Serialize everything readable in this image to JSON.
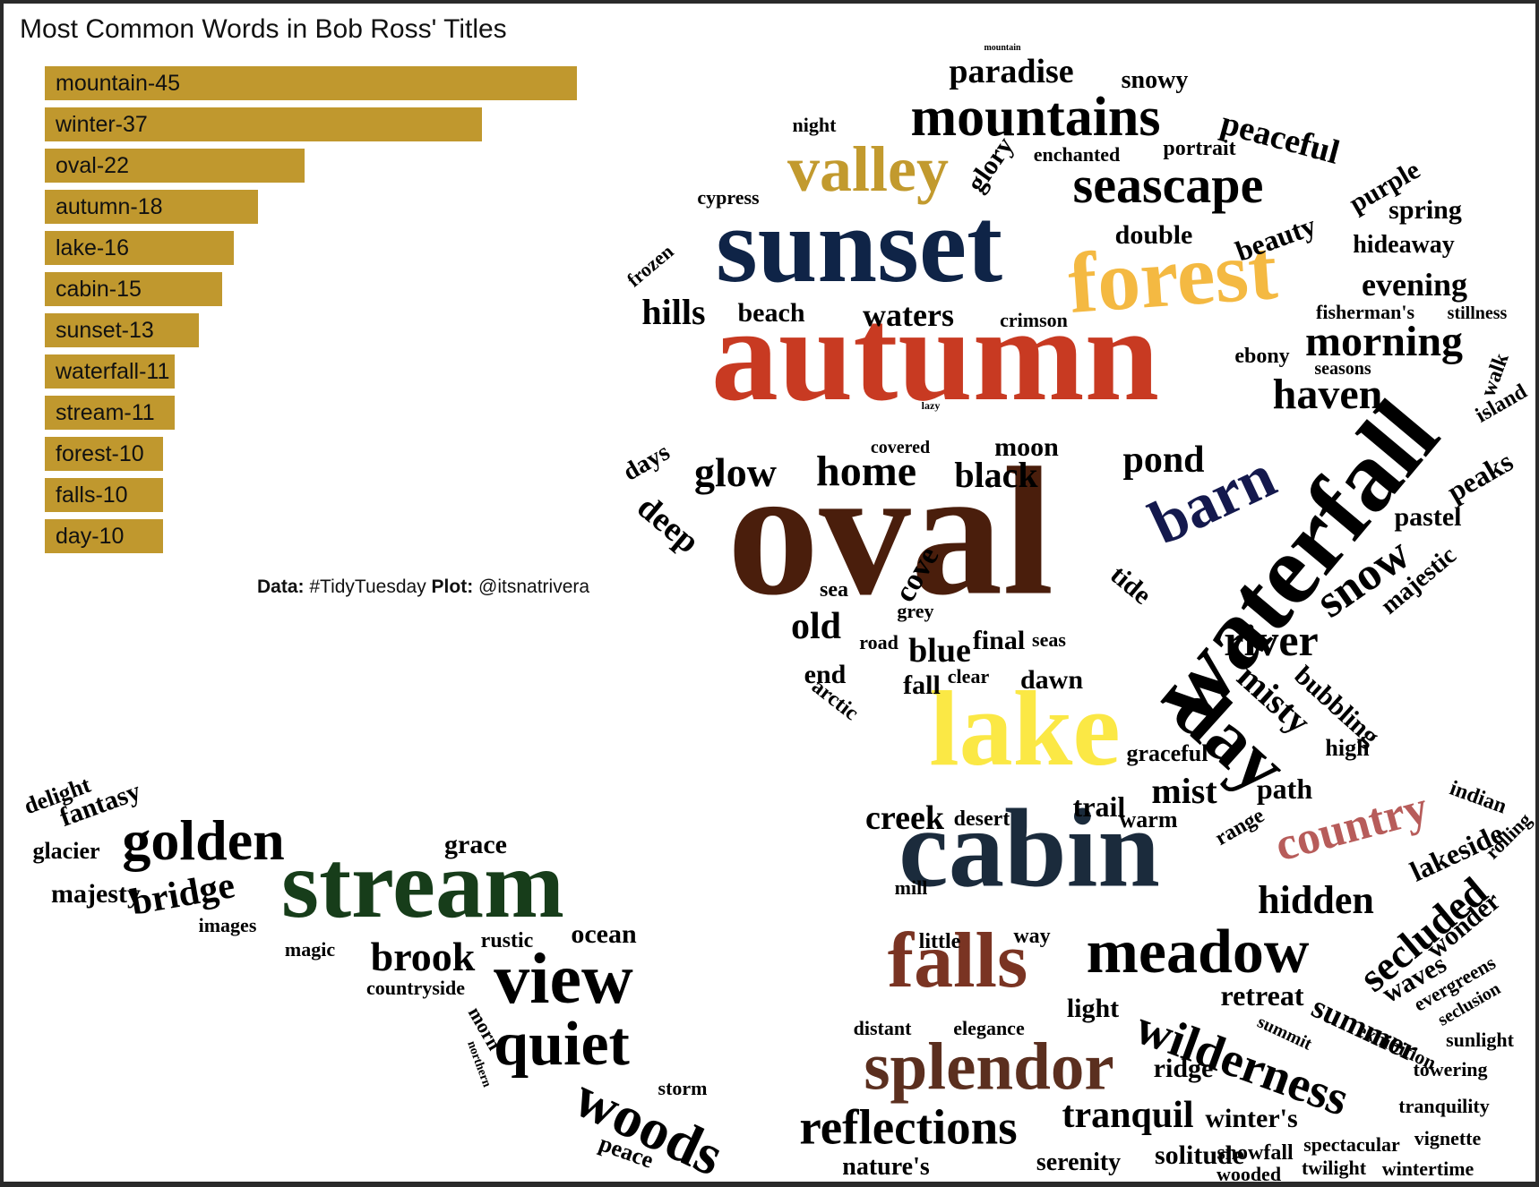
{
  "chart_data": {
    "type": "bar",
    "title": "Most Common Words in Bob Ross' Titles",
    "orientation": "horizontal",
    "bar_color": "#c0982e",
    "categories": [
      "mountain",
      "winter",
      "oval",
      "autumn",
      "lake",
      "cabin",
      "sunset",
      "waterfall",
      "stream",
      "forest",
      "falls",
      "day"
    ],
    "values": [
      45,
      37,
      22,
      18,
      16,
      15,
      13,
      11,
      11,
      10,
      10,
      10
    ],
    "labels": [
      "mountain-45",
      "winter-37",
      "oval-22",
      "autumn-18",
      "lake-16",
      "cabin-15",
      "sunset-13",
      "waterfall-11",
      "stream-11",
      "forest-10",
      "falls-10",
      "day-10"
    ],
    "caption": {
      "data_label": "Data:",
      "data_value": "#TidyTuesday",
      "plot_label": "Plot:",
      "plot_value": "@itsnatrivera"
    }
  },
  "word_cloud": {
    "colors": {
      "autumn": "#c83a22",
      "oval": "#4a1e0c",
      "sunset": "#0f2447",
      "forest": "#f4b942",
      "valley": "#c29a2e",
      "lake": "#fbe845",
      "cabin": "#1b2b3c",
      "falls": "#7a3423",
      "splendor": "#5b2f1f",
      "country": "#b75c5a",
      "stream": "#173d1a",
      "barn": "#14194d",
      "default": "#000000"
    },
    "words": [
      "autumn",
      "oval",
      "sunset",
      "forest",
      "valley",
      "lake",
      "cabin",
      "falls",
      "waterfall",
      "splendor",
      "stream",
      "view",
      "quiet",
      "woods",
      "golden",
      "meadow",
      "seascape",
      "mountains",
      "barn",
      "day",
      "wilderness",
      "reflections",
      "country",
      "secluded",
      "hidden",
      "glow",
      "home",
      "black",
      "paradise",
      "peaceful",
      "snowy",
      "night",
      "glory",
      "enchanted",
      "portrait",
      "cypress",
      "purple",
      "beauty",
      "double",
      "spring",
      "hideaway",
      "evening",
      "hills",
      "beach",
      "waters",
      "crimson",
      "fisherman's",
      "stillness",
      "morning",
      "ebony",
      "haven",
      "seasons",
      "walk",
      "island",
      "pond",
      "moon",
      "covered",
      "days",
      "deep",
      "peaks",
      "pastel",
      "majestic",
      "snow",
      "tide",
      "river",
      "misty",
      "bubbling",
      "sea",
      "old",
      "road",
      "blue",
      "final",
      "seas",
      "end",
      "fall",
      "clear",
      "dawn",
      "arctic",
      "cove",
      "grey",
      "high",
      "graceful",
      "mist",
      "path",
      "indian",
      "creek",
      "desert",
      "trail",
      "warm",
      "range",
      "lakeside",
      "rolling",
      "mill",
      "little",
      "way",
      "retreat",
      "light",
      "ridge",
      "summer",
      "waves",
      "wonder",
      "evergreens",
      "seclusion",
      "exhibition",
      "sunlight",
      "towering",
      "distant",
      "elegance",
      "tranquil",
      "winter's",
      "tranquility",
      "vignette",
      "solitude",
      "serenity",
      "nature's",
      "snowfall",
      "spectacular",
      "twilight",
      "wintertime",
      "wooded",
      "brook",
      "rustic",
      "ocean",
      "magic",
      "countryside",
      "grace",
      "bridge",
      "majesty",
      "fantasy",
      "delight",
      "glacier",
      "images",
      "storm",
      "peace",
      "morn",
      "northern",
      "frozen",
      "summit",
      "mountain",
      "lazy"
    ]
  }
}
